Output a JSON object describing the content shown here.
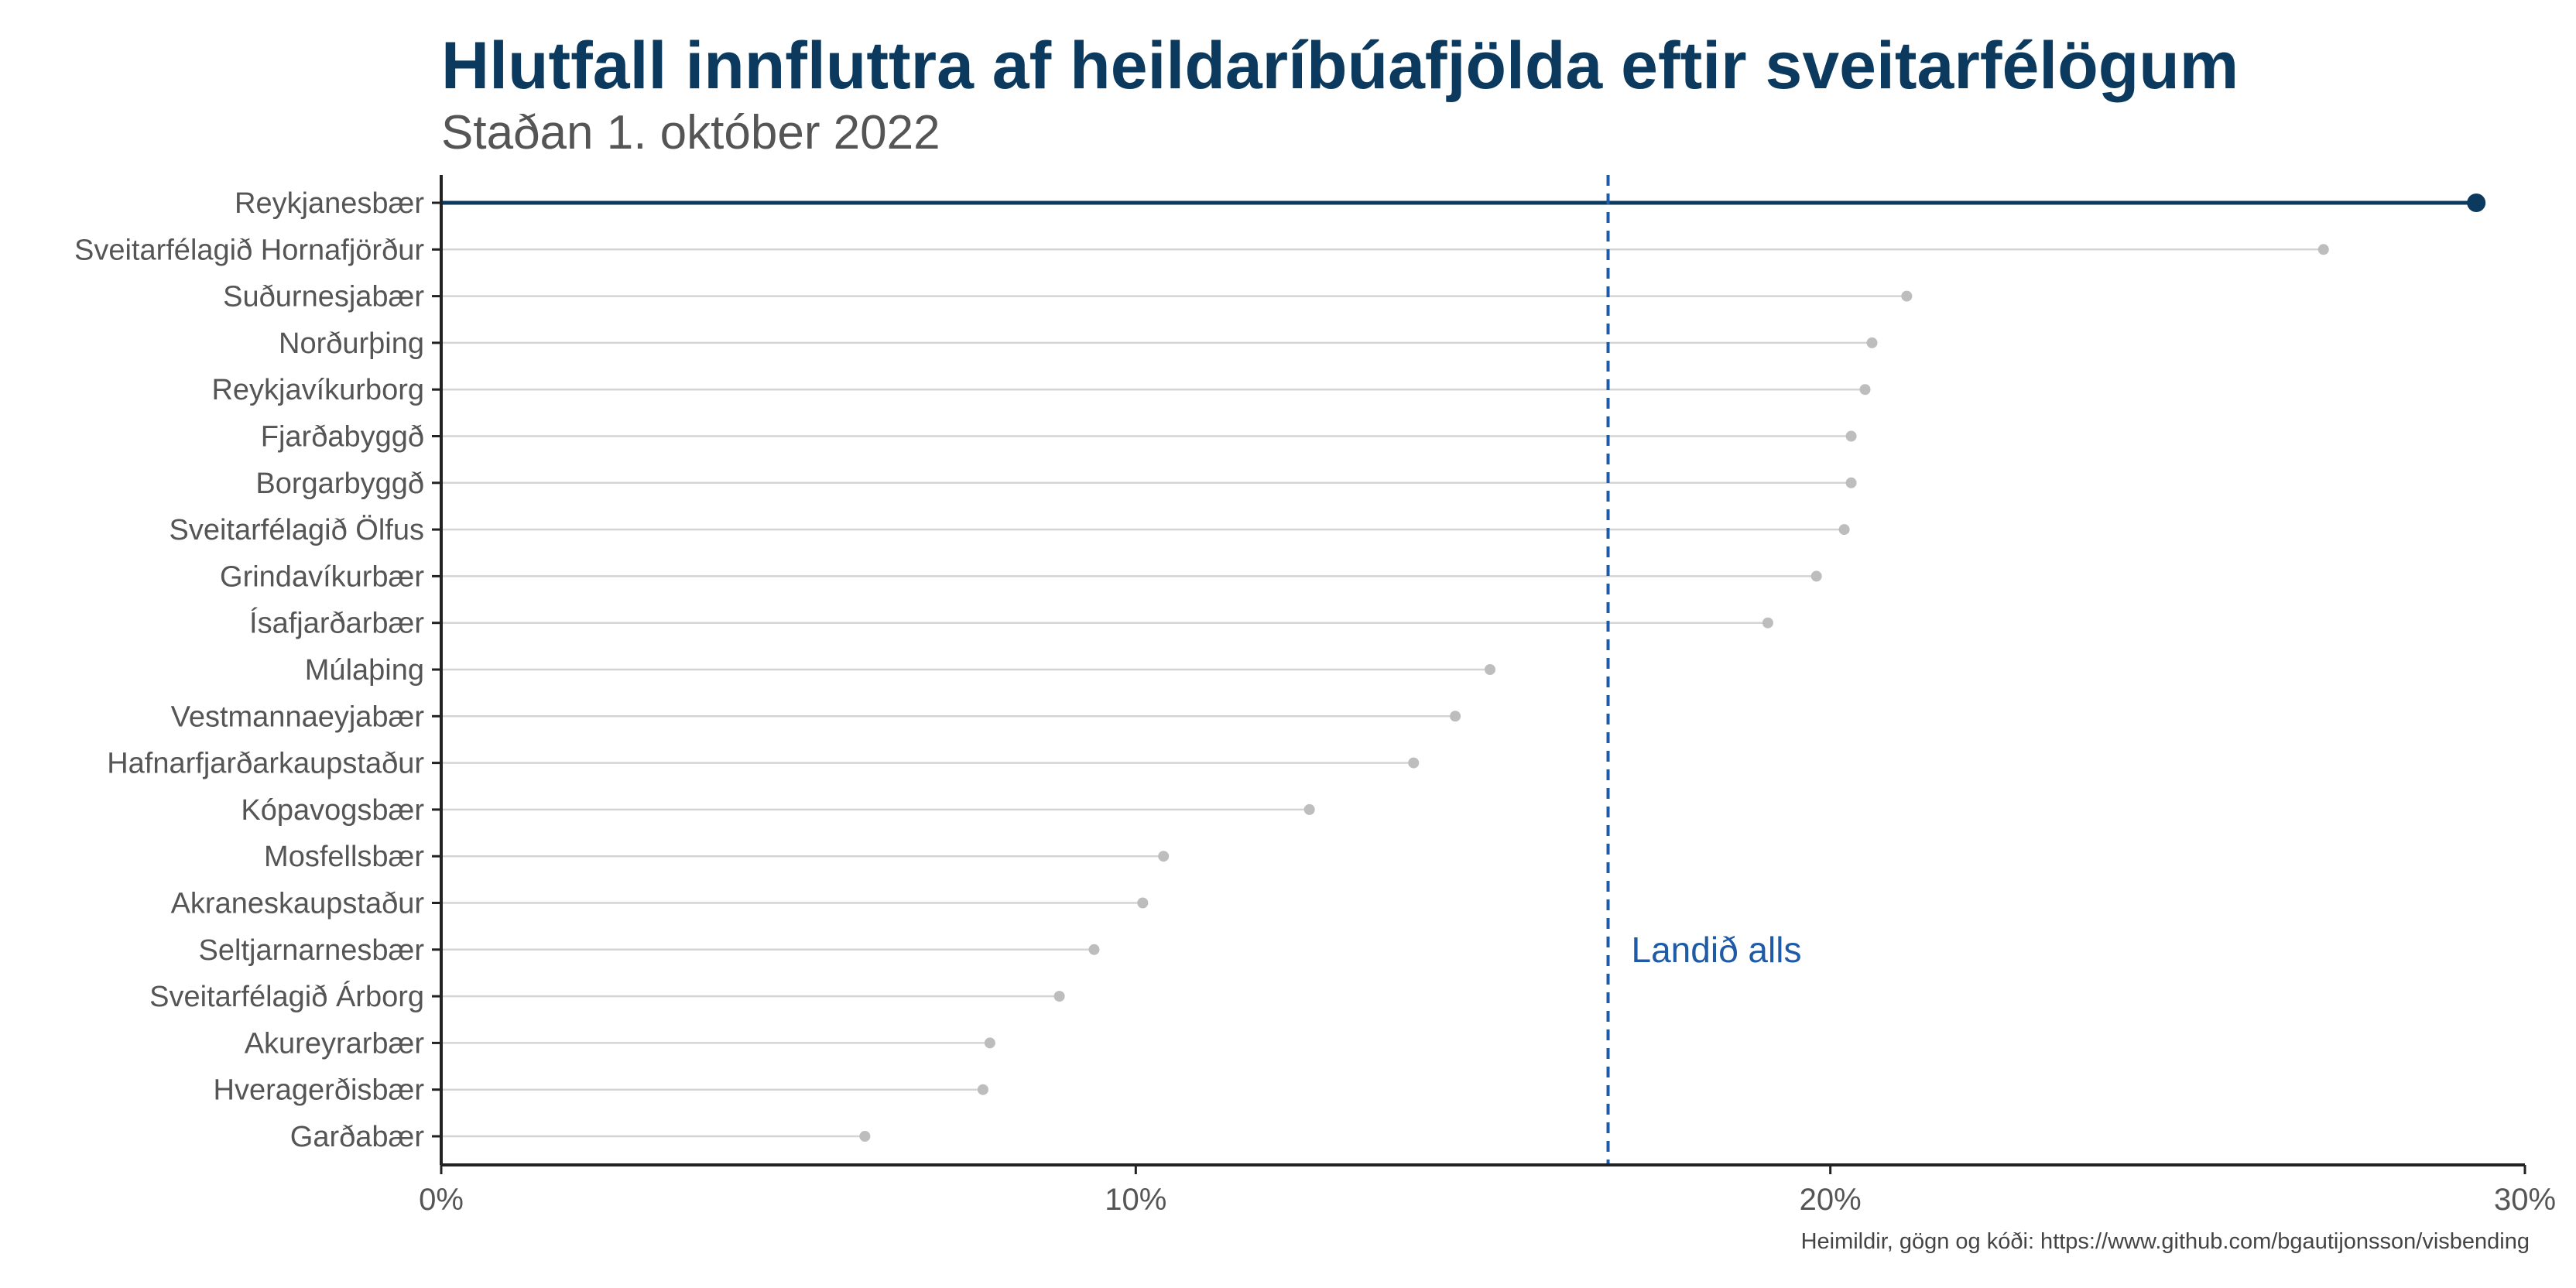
{
  "chart_data": {
    "type": "lollipop",
    "title": "Hlutfall innfluttra af heildaríbúafjölda eftir sveitarfélögum",
    "subtitle": "Staðan 1. október 2022",
    "caption": "Heimildir, gögn og kóði: https://www.github.com/bgautijonsson/visbending",
    "xlabel": "",
    "ylabel": "",
    "xlim": [
      0,
      30
    ],
    "xticks": [
      0,
      10,
      20,
      30
    ],
    "xtick_labels": [
      "0%",
      "10%",
      "20%",
      "30%"
    ],
    "categories": [
      "Reykjanesbær",
      "Sveitarfélagið Hornafjörður",
      "Suðurnesjabær",
      "Norðurþing",
      "Reykjavíkurborg",
      "Fjarðabyggð",
      "Borgarbyggð",
      "Sveitarfélagið Ölfus",
      "Grindavíkurbær",
      "Ísafjarðarbær",
      "Múlaþing",
      "Vestmannaeyjabær",
      "Hafnarfjarðarkaupstaður",
      "Kópavogsbær",
      "Mosfellsbær",
      "Akraneskaupstaður",
      "Seltjarnarnesbær",
      "Sveitarfélagið Árborg",
      "Akureyrarbær",
      "Hveragerðisbær",
      "Garðabær"
    ],
    "values": [
      29.3,
      27.1,
      21.1,
      20.6,
      20.5,
      20.3,
      20.3,
      20.2,
      19.8,
      19.1,
      15.1,
      14.6,
      14.0,
      12.5,
      10.4,
      10.1,
      9.4,
      8.9,
      7.9,
      7.8,
      6.1
    ],
    "highlight": "Reykjanesbær",
    "reference_line": {
      "value": 16.8,
      "label": "Landið alls"
    },
    "colors": {
      "highlight": "#0b3a5e",
      "points": "#bdbdbd",
      "segments": "#d4d4d4",
      "reference": "#1f5aa6",
      "title": "#0b3a5e",
      "axis": "#222222"
    }
  }
}
